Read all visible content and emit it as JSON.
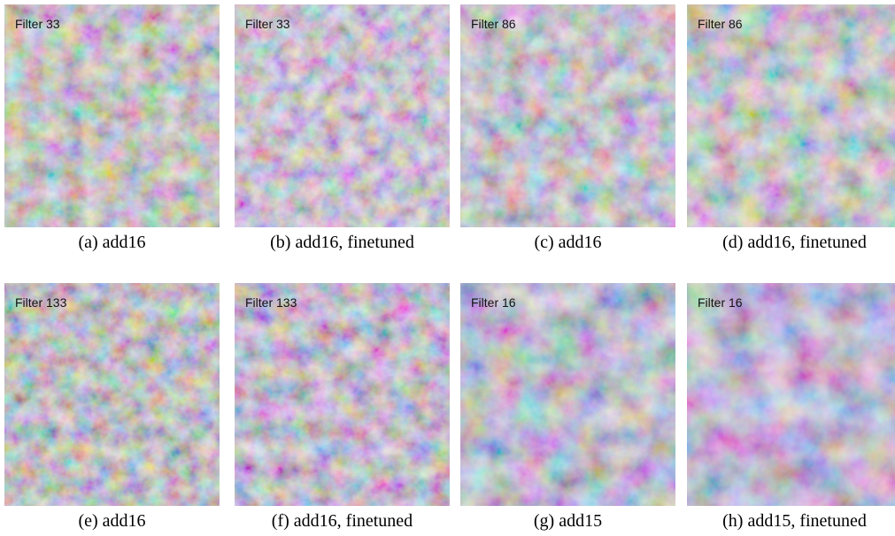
{
  "panels": [
    {
      "label": "Filter 33",
      "caption": "(a) add16"
    },
    {
      "label": "Filter 33",
      "caption": "(b) add16, finetuned"
    },
    {
      "label": "Filter 86",
      "caption": "(c) add16"
    },
    {
      "label": "Filter 86",
      "caption": "(d) add16, finetuned"
    },
    {
      "label": "Filter 133",
      "caption": "(e) add16"
    },
    {
      "label": "Filter 133",
      "caption": "(f) add16, finetuned"
    },
    {
      "label": "Filter 16",
      "caption": "(g) add15"
    },
    {
      "label": "Filter 16",
      "caption": "(h) add15, finetuned"
    }
  ]
}
